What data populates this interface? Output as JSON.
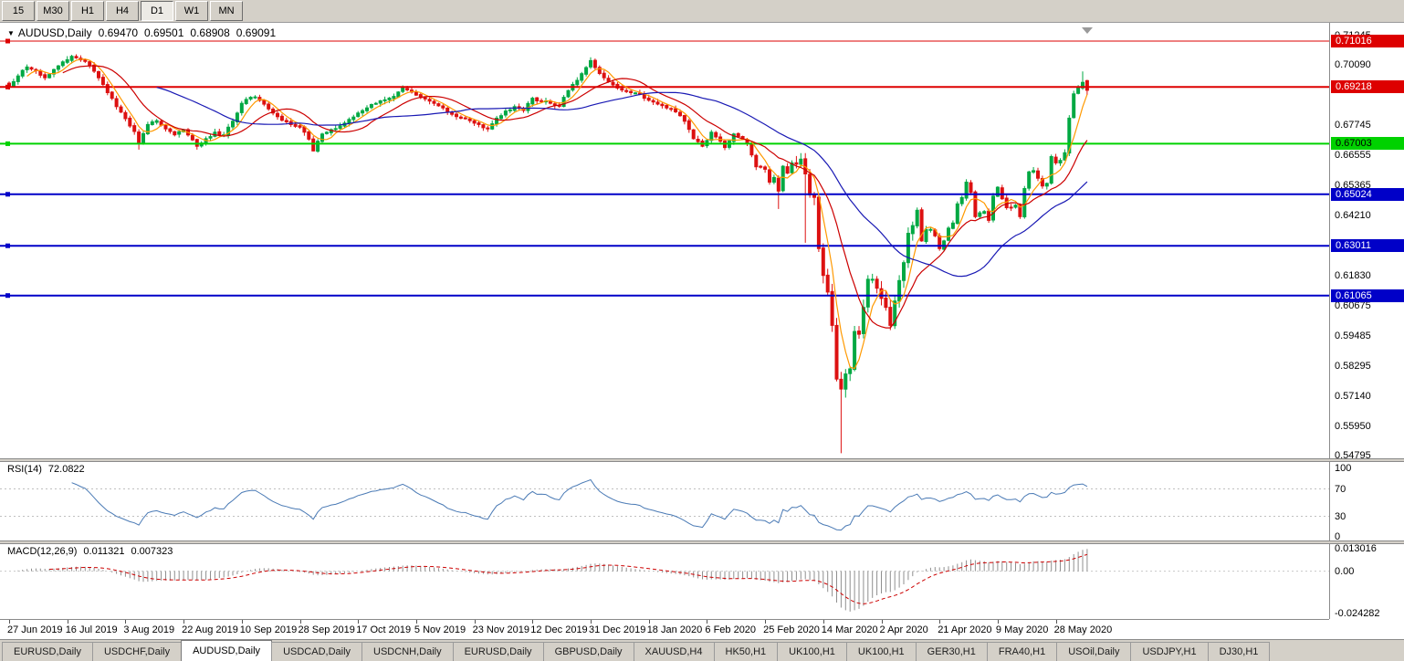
{
  "toolbar": {
    "timeframes": [
      "15",
      "M30",
      "H1",
      "H4",
      "D1",
      "W1",
      "MN"
    ],
    "active": "D1"
  },
  "header": {
    "arrow": "▼",
    "symbol": "AUDUSD,Daily",
    "open": "0.69470",
    "high": "0.69501",
    "low": "0.68908",
    "close": "0.69091"
  },
  "price_axis": {
    "gridline_labels": [
      {
        "text": "0.71245",
        "value": 0.71245
      },
      {
        "text": "0.70090",
        "value": 0.7009
      },
      {
        "text": "0.67745",
        "value": 0.67745
      },
      {
        "text": "0.66555",
        "value": 0.66555
      },
      {
        "text": "0.65365",
        "value": 0.65365
      },
      {
        "text": "0.64210",
        "value": 0.6421
      },
      {
        "text": "0.61830",
        "value": 0.6183
      },
      {
        "text": "0.60675",
        "value": 0.60675
      },
      {
        "text": "0.59485",
        "value": 0.59485
      },
      {
        "text": "0.58295",
        "value": 0.58295
      },
      {
        "text": "0.57140",
        "value": 0.5714
      },
      {
        "text": "0.55950",
        "value": 0.5595
      },
      {
        "text": "0.54795",
        "value": 0.54795
      }
    ]
  },
  "hlines": [
    {
      "text": "0.71016",
      "value": 0.71016,
      "color": "#dd0000",
      "text_color": "#ffffff",
      "thickness": 1
    },
    {
      "text": "0.69218",
      "value": 0.69218,
      "color": "#dd0000",
      "text_color": "#ffffff",
      "thickness": 2
    },
    {
      "text": "0.67003",
      "value": 0.67003,
      "color": "#00d200",
      "text_color": "#000000",
      "thickness": 2
    },
    {
      "text": "0.65024",
      "value": 0.65024,
      "color": "#0000c8",
      "text_color": "#ffffff",
      "thickness": 2
    },
    {
      "text": "0.63011",
      "value": 0.63011,
      "color": "#0000c8",
      "text_color": "#ffffff",
      "thickness": 2
    },
    {
      "text": "0.61065",
      "value": 0.61065,
      "color": "#0000c8",
      "text_color": "#ffffff",
      "thickness": 2
    }
  ],
  "rsi": {
    "label": "RSI(14)",
    "value": "72.0822",
    "period": 14,
    "line_color": "#4a7ab5",
    "levels": [
      {
        "text": "100",
        "value": 100
      },
      {
        "text": "70",
        "value": 70
      },
      {
        "text": "30",
        "value": 30
      },
      {
        "text": "0",
        "value": 0
      }
    ]
  },
  "macd": {
    "label": "MACD(12,26,9)",
    "main_value": "0.011321",
    "signal_value": "0.007323",
    "fast": 12,
    "slow": 26,
    "signal": 9,
    "hist_color": "#8f8f8f",
    "signal_color": "#cc0000",
    "axis_max": 0.0145,
    "axis_min": -0.0265,
    "axis_labels": [
      {
        "text": "0.013016",
        "value": 0.013016
      },
      {
        "text": "0.00",
        "value": 0
      },
      {
        "text": "-0.024282",
        "value": -0.024282
      }
    ]
  },
  "time_axis": {
    "labels": [
      "27 Jun 2019",
      "16 Jul 2019",
      "3 Aug 2019",
      "22 Aug 2019",
      "10 Sep 2019",
      "28 Sep 2019",
      "17 Oct 2019",
      "5 Nov 2019",
      "23 Nov 2019",
      "12 Dec 2019",
      "31 Dec 2019",
      "18 Jan 2020",
      "6 Feb 2020",
      "25 Feb 2020",
      "14 Mar 2020",
      "2 Apr 2020",
      "21 Apr 2020",
      "9 May 2020",
      "28 May 2020"
    ],
    "candles_per_label": 13
  },
  "tabs": [
    {
      "label": "EURUSD,Daily"
    },
    {
      "label": "USDCHF,Daily"
    },
    {
      "label": "AUDUSD,Daily",
      "active": true
    },
    {
      "label": "USDCAD,Daily"
    },
    {
      "label": "USDCNH,Daily"
    },
    {
      "label": "EURUSD,Daily"
    },
    {
      "label": "GBPUSD,Daily"
    },
    {
      "label": "XAUUSD,H4"
    },
    {
      "label": "HK50,H1"
    },
    {
      "label": "UK100,H1"
    },
    {
      "label": "UK100,H1"
    },
    {
      "label": "GER30,H1"
    },
    {
      "label": "FRA40,H1"
    },
    {
      "label": "USOil,Daily"
    },
    {
      "label": "USDJPY,H1"
    },
    {
      "label": "DJ30,H1"
    }
  ],
  "chart_data": {
    "type": "candlestick",
    "symbol": "AUDUSD",
    "timeframe": "Daily",
    "num_candles": 242,
    "price_axis_max": 0.7155,
    "price_axis_min": 0.547,
    "up_color": "#00a843",
    "down_color": "#dd1111",
    "moving_averages": [
      {
        "period": 5,
        "color": "#ff9900"
      },
      {
        "period": 13,
        "color": "#cc0000"
      },
      {
        "period": 34,
        "color": "#1919b4"
      }
    ],
    "close_anchors": [
      [
        0,
        0.6925
      ],
      [
        2,
        0.6965
      ],
      [
        4,
        0.7
      ],
      [
        6,
        0.6985
      ],
      [
        8,
        0.6958
      ],
      [
        10,
        0.699
      ],
      [
        12,
        0.702
      ],
      [
        14,
        0.7042
      ],
      [
        16,
        0.7028
      ],
      [
        18,
        0.7005
      ],
      [
        20,
        0.6958
      ],
      [
        22,
        0.69
      ],
      [
        24,
        0.6845
      ],
      [
        26,
        0.6798
      ],
      [
        28,
        0.6748
      ],
      [
        29,
        0.67
      ],
      [
        31,
        0.6775
      ],
      [
        33,
        0.679
      ],
      [
        35,
        0.6758
      ],
      [
        37,
        0.6735
      ],
      [
        39,
        0.6755
      ],
      [
        41,
        0.6715
      ],
      [
        42,
        0.669
      ],
      [
        44,
        0.672
      ],
      [
        46,
        0.6745
      ],
      [
        48,
        0.6735
      ],
      [
        50,
        0.6788
      ],
      [
        52,
        0.6858
      ],
      [
        55,
        0.6883
      ],
      [
        57,
        0.6855
      ],
      [
        59,
        0.682
      ],
      [
        61,
        0.6792
      ],
      [
        63,
        0.6775
      ],
      [
        65,
        0.6765
      ],
      [
        67,
        0.6718
      ],
      [
        68,
        0.6672
      ],
      [
        70,
        0.6738
      ],
      [
        72,
        0.6755
      ],
      [
        74,
        0.677
      ],
      [
        76,
        0.6795
      ],
      [
        78,
        0.682
      ],
      [
        80,
        0.684
      ],
      [
        82,
        0.6858
      ],
      [
        84,
        0.6872
      ],
      [
        86,
        0.6885
      ],
      [
        88,
        0.6918
      ],
      [
        90,
        0.6902
      ],
      [
        91,
        0.689
      ],
      [
        93,
        0.6875
      ],
      [
        95,
        0.6858
      ],
      [
        97,
        0.684
      ],
      [
        99,
        0.6815
      ],
      [
        101,
        0.68
      ],
      [
        103,
        0.679
      ],
      [
        105,
        0.6775
      ],
      [
        107,
        0.6758
      ],
      [
        109,
        0.68
      ],
      [
        111,
        0.6828
      ],
      [
        113,
        0.6845
      ],
      [
        115,
        0.683
      ],
      [
        117,
        0.6878
      ],
      [
        119,
        0.6868
      ],
      [
        121,
        0.6858
      ],
      [
        123,
        0.6848
      ],
      [
        125,
        0.6908
      ],
      [
        127,
        0.6948
      ],
      [
        129,
        0.6998
      ],
      [
        130,
        0.7025
      ],
      [
        131,
        0.6998
      ],
      [
        133,
        0.6958
      ],
      [
        135,
        0.693
      ],
      [
        137,
        0.691
      ],
      [
        139,
        0.69
      ],
      [
        141,
        0.6893
      ],
      [
        143,
        0.687
      ],
      [
        145,
        0.6855
      ],
      [
        147,
        0.684
      ],
      [
        149,
        0.6825
      ],
      [
        151,
        0.6788
      ],
      [
        153,
        0.672
      ],
      [
        155,
        0.669
      ],
      [
        157,
        0.6745
      ],
      [
        159,
        0.671
      ],
      [
        160,
        0.6685
      ],
      [
        162,
        0.6738
      ],
      [
        164,
        0.6718
      ],
      [
        165,
        0.67
      ],
      [
        167,
        0.661
      ],
      [
        169,
        0.66
      ],
      [
        170,
        0.655
      ],
      [
        171,
        0.6568
      ],
      [
        172,
        0.6515
      ],
      [
        173,
        0.6612
      ],
      [
        174,
        0.6585
      ],
      [
        175,
        0.6625
      ],
      [
        176,
        0.662
      ],
      [
        177,
        0.664
      ],
      [
        178,
        0.6582
      ],
      [
        179,
        0.65
      ],
      [
        180,
        0.649
      ],
      [
        181,
        0.629
      ],
      [
        182,
        0.6185
      ],
      [
        183,
        0.612
      ],
      [
        184,
        0.599
      ],
      [
        185,
        0.578
      ],
      [
        186,
        0.5741
      ],
      [
        187,
        0.58
      ],
      [
        188,
        0.582
      ],
      [
        189,
        0.5966
      ],
      [
        190,
        0.5955
      ],
      [
        191,
        0.606
      ],
      [
        192,
        0.617
      ],
      [
        193,
        0.617
      ],
      [
        194,
        0.6135
      ],
      [
        195,
        0.6095
      ],
      [
        196,
        0.606
      ],
      [
        197,
        0.599
      ],
      [
        198,
        0.6085
      ],
      [
        199,
        0.6165
      ],
      [
        200,
        0.6235
      ],
      [
        201,
        0.635
      ],
      [
        202,
        0.638
      ],
      [
        203,
        0.644
      ],
      [
        204,
        0.632
      ],
      [
        205,
        0.6365
      ],
      [
        206,
        0.6365
      ],
      [
        207,
        0.634
      ],
      [
        208,
        0.629
      ],
      [
        209,
        0.632
      ],
      [
        210,
        0.637
      ],
      [
        211,
        0.639
      ],
      [
        212,
        0.6465
      ],
      [
        213,
        0.649
      ],
      [
        214,
        0.655
      ],
      [
        215,
        0.651
      ],
      [
        216,
        0.6415
      ],
      [
        217,
        0.643
      ],
      [
        218,
        0.6435
      ],
      [
        219,
        0.64
      ],
      [
        220,
        0.6495
      ],
      [
        221,
        0.653
      ],
      [
        222,
        0.6485
      ],
      [
        223,
        0.645
      ],
      [
        224,
        0.645
      ],
      [
        225,
        0.646
      ],
      [
        226,
        0.6415
      ],
      [
        227,
        0.6525
      ],
      [
        228,
        0.659
      ],
      [
        229,
        0.6595
      ],
      [
        230,
        0.6565
      ],
      [
        231,
        0.6535
      ],
      [
        232,
        0.6545
      ],
      [
        233,
        0.665
      ],
      [
        234,
        0.6625
      ],
      [
        235,
        0.6635
      ],
      [
        236,
        0.6665
      ],
      [
        237,
        0.68
      ],
      [
        238,
        0.6895
      ],
      [
        239,
        0.692
      ],
      [
        240,
        0.694
      ],
      [
        241,
        0.6909
      ]
    ],
    "low_overrides": {
      "29": 0.6677,
      "42": 0.6677,
      "68": 0.667,
      "172": 0.6445,
      "178": 0.6313,
      "186": 0.549
    },
    "high_overrides": {
      "14": 0.7048,
      "240": 0.6983
    },
    "last_candle": {
      "open": 0.6947,
      "high": 0.69501,
      "low": 0.68908,
      "close": 0.69091
    }
  }
}
